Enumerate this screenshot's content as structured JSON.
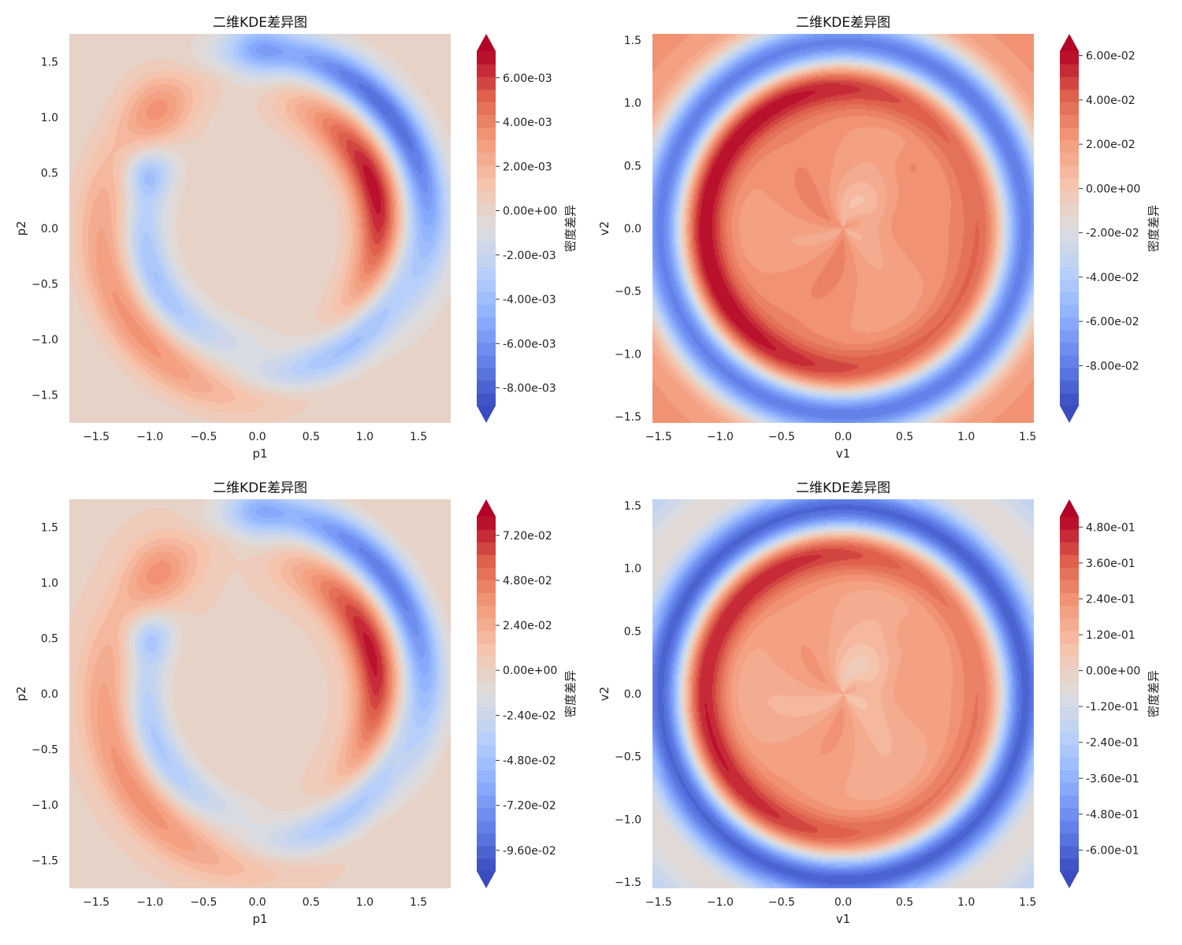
{
  "chart_data": [
    {
      "type": "heatmap",
      "title": "二维KDE差异图",
      "xlabel": "p1",
      "ylabel": "p2",
      "xlim": [
        -1.75,
        1.8
      ],
      "ylim": [
        -1.75,
        1.75
      ],
      "xticks": [
        "−1.5",
        "−1.0",
        "−0.5",
        "0.0",
        "0.5",
        "1.0",
        "1.5"
      ],
      "xtick_values": [
        -1.5,
        -1.0,
        -0.5,
        0.0,
        0.5,
        1.0,
        1.5
      ],
      "yticks": [
        "−1.5",
        "−1.0",
        "−0.5",
        "0.0",
        "0.5",
        "1.0",
        "1.5"
      ],
      "ytick_values": [
        -1.5,
        -1.0,
        -0.5,
        0.0,
        0.5,
        1.0,
        1.5
      ],
      "colorbar": {
        "label": "密度差异",
        "min": -0.0088,
        "max": 0.0072,
        "ticks": [
          "-8.00e-03",
          "-6.00e-03",
          "-4.00e-03",
          "-2.00e-03",
          "0.00e+00",
          "2.00e-03",
          "4.00e-03",
          "6.00e-03"
        ],
        "tick_values": [
          -0.008,
          -0.006,
          -0.004,
          -0.002,
          0.0,
          0.002,
          0.004,
          0.006
        ]
      },
      "colormap": "coolwarm",
      "grid": false
    },
    {
      "type": "heatmap",
      "title": "二维KDE差异图",
      "xlabel": "v1",
      "ylabel": "v2",
      "xlim": [
        -1.55,
        1.55
      ],
      "ylim": [
        -1.55,
        1.55
      ],
      "xticks": [
        "−1.5",
        "−1.0",
        "−0.5",
        "0.0",
        "0.5",
        "1.0",
        "1.5"
      ],
      "xtick_values": [
        -1.5,
        -1.0,
        -0.5,
        0.0,
        0.5,
        1.0,
        1.5
      ],
      "yticks": [
        "−1.5",
        "−1.0",
        "−0.5",
        "0.0",
        "0.5",
        "1.0",
        "1.5"
      ],
      "ytick_values": [
        -1.5,
        -1.0,
        -0.5,
        0.0,
        0.5,
        1.0,
        1.5
      ],
      "colorbar": {
        "label": "密度差异",
        "min": -0.098,
        "max": 0.062,
        "ticks": [
          "-8.00e-02",
          "-6.00e-02",
          "-4.00e-02",
          "-2.00e-02",
          "0.00e+00",
          "2.00e-02",
          "4.00e-02",
          "6.00e-02"
        ],
        "tick_values": [
          -0.08,
          -0.06,
          -0.04,
          -0.02,
          0.0,
          0.02,
          0.04,
          0.06
        ]
      },
      "colormap": "coolwarm",
      "grid": false
    },
    {
      "type": "heatmap",
      "title": "二维KDE差异图",
      "xlabel": "p1",
      "ylabel": "p2",
      "xlim": [
        -1.75,
        1.8
      ],
      "ylim": [
        -1.75,
        1.75
      ],
      "xticks": [
        "−1.5",
        "−1.0",
        "−0.5",
        "0.0",
        "0.5",
        "1.0",
        "1.5"
      ],
      "xtick_values": [
        -1.5,
        -1.0,
        -0.5,
        0.0,
        0.5,
        1.0,
        1.5
      ],
      "yticks": [
        "−1.5",
        "−1.0",
        "−0.5",
        "0.0",
        "0.5",
        "1.0",
        "1.5"
      ],
      "ytick_values": [
        -1.5,
        -1.0,
        -0.5,
        0.0,
        0.5,
        1.0,
        1.5
      ],
      "colorbar": {
        "label": "密度差异",
        "min": -0.107,
        "max": 0.082,
        "ticks": [
          "-9.60e-02",
          "-7.20e-02",
          "-4.80e-02",
          "-2.40e-02",
          "0.00e+00",
          "2.40e-02",
          "4.80e-02",
          "7.20e-02"
        ],
        "tick_values": [
          -0.096,
          -0.072,
          -0.048,
          -0.024,
          0.0,
          0.024,
          0.048,
          0.072
        ]
      },
      "colormap": "coolwarm",
      "grid": false
    },
    {
      "type": "heatmap",
      "title": "二维KDE差异图",
      "xlabel": "v1",
      "ylabel": "v2",
      "xlim": [
        -1.55,
        1.55
      ],
      "ylim": [
        -1.55,
        1.55
      ],
      "xticks": [
        "−1.5",
        "−1.0",
        "−0.5",
        "0.0",
        "0.5",
        "1.0",
        "1.5"
      ],
      "xtick_values": [
        -1.5,
        -1.0,
        -0.5,
        0.0,
        0.5,
        1.0,
        1.5
      ],
      "yticks": [
        "−1.5",
        "−1.0",
        "−0.5",
        "0.0",
        "0.5",
        "1.0",
        "1.5"
      ],
      "ytick_values": [
        -1.5,
        -1.0,
        -0.5,
        0.0,
        0.5,
        1.0,
        1.5
      ],
      "colorbar": {
        "label": "密度差异",
        "min": -0.67,
        "max": 0.515,
        "ticks": [
          "-6.00e-01",
          "-4.80e-01",
          "-3.60e-01",
          "-2.40e-01",
          "-1.20e-01",
          "0.00e+00",
          "1.20e-01",
          "2.40e-01",
          "3.60e-01",
          "4.80e-01"
        ],
        "tick_values": [
          -0.6,
          -0.48,
          -0.36,
          -0.24,
          -0.12,
          0.0,
          0.12,
          0.24,
          0.36,
          0.48
        ]
      },
      "colormap": "coolwarm",
      "grid": false
    }
  ]
}
